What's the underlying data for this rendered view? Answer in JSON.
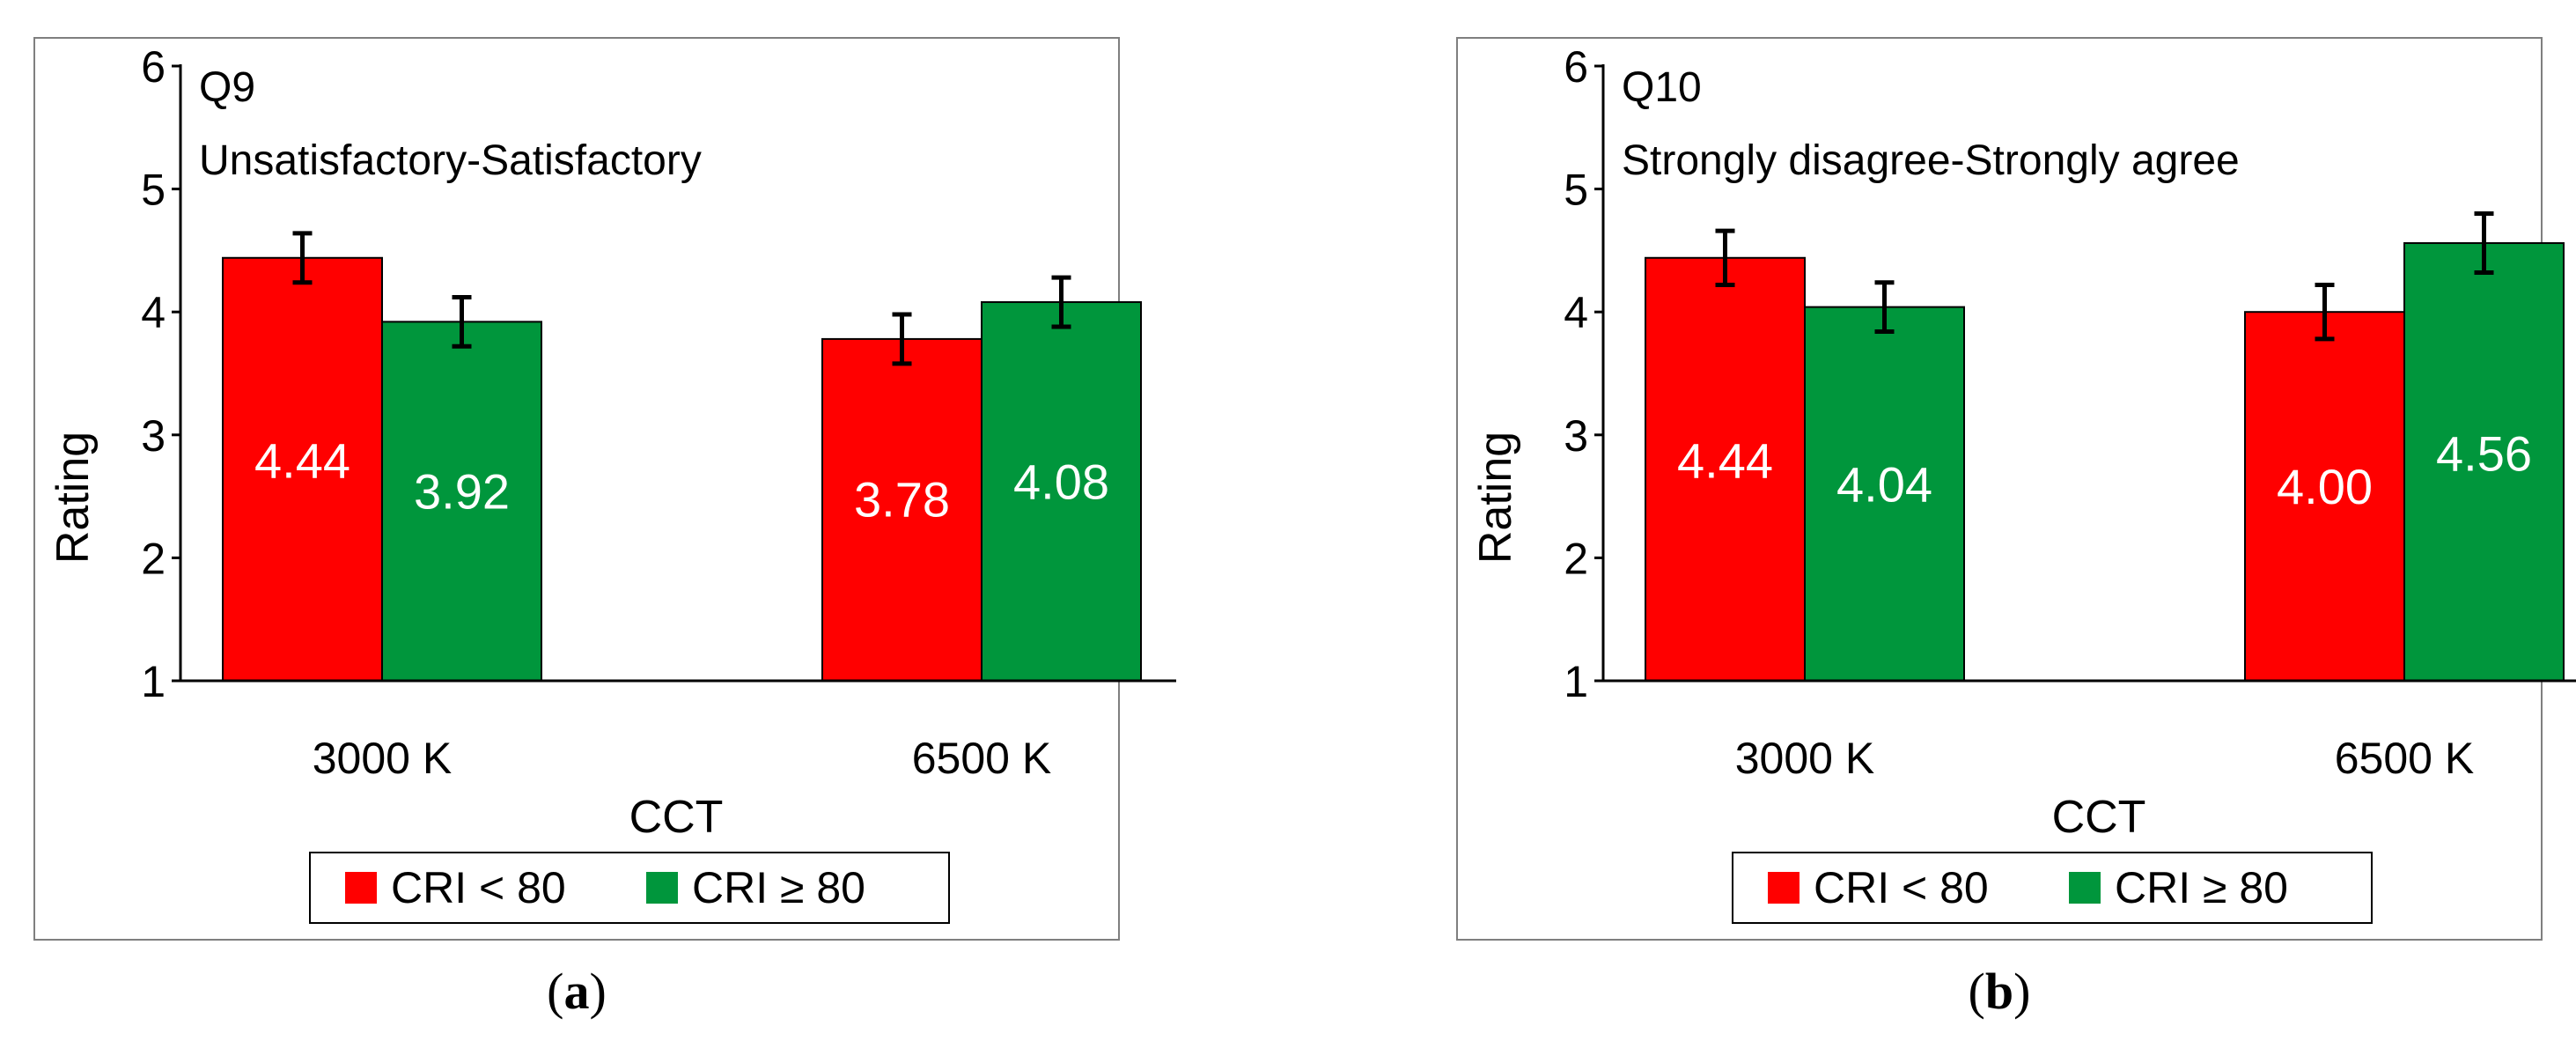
{
  "colors": {
    "cri_low": "#ff0000",
    "cri_high": "#00963c"
  },
  "chart_data": [
    {
      "type": "bar",
      "panel": "a",
      "caption": "(a)",
      "caption_letter": "a",
      "title": "Q9",
      "subtitle": "Unsatisfactory-Satisfactory",
      "xlabel": "CCT",
      "ylabel": "Rating",
      "ylim": [
        1,
        6
      ],
      "yticks": [
        "1",
        "2",
        "3",
        "4",
        "5",
        "6"
      ],
      "categories": [
        "3000 K",
        "6500 K"
      ],
      "series": [
        {
          "name": "CRI < 80",
          "values": [
            4.44,
            3.78
          ],
          "labels": [
            "4.44",
            "3.78"
          ],
          "error": [
            0.2,
            0.2
          ]
        },
        {
          "name": "CRI ≥ 80",
          "values": [
            3.92,
            4.08
          ],
          "labels": [
            "3.92",
            "4.08"
          ],
          "error": [
            0.2,
            0.2
          ]
        }
      ],
      "legend": [
        "CRI < 80",
        "CRI ≥ 80"
      ]
    },
    {
      "type": "bar",
      "panel": "b",
      "caption": "(b)",
      "caption_letter": "b",
      "title": "Q10",
      "subtitle": "Strongly disagree-Strongly agree",
      "xlabel": "CCT",
      "ylabel": "Rating",
      "ylim": [
        1,
        6
      ],
      "yticks": [
        "1",
        "2",
        "3",
        "4",
        "5",
        "6"
      ],
      "categories": [
        "3000 K",
        "6500 K"
      ],
      "series": [
        {
          "name": "CRI < 80",
          "values": [
            4.44,
            4.0
          ],
          "labels": [
            "4.44",
            "4.00"
          ],
          "error": [
            0.22,
            0.22
          ]
        },
        {
          "name": "CRI ≥ 80",
          "values": [
            4.04,
            4.56
          ],
          "labels": [
            "4.04",
            "4.56"
          ],
          "error": [
            0.2,
            0.24
          ]
        }
      ],
      "legend": [
        "CRI < 80",
        "CRI ≥ 80"
      ]
    }
  ]
}
